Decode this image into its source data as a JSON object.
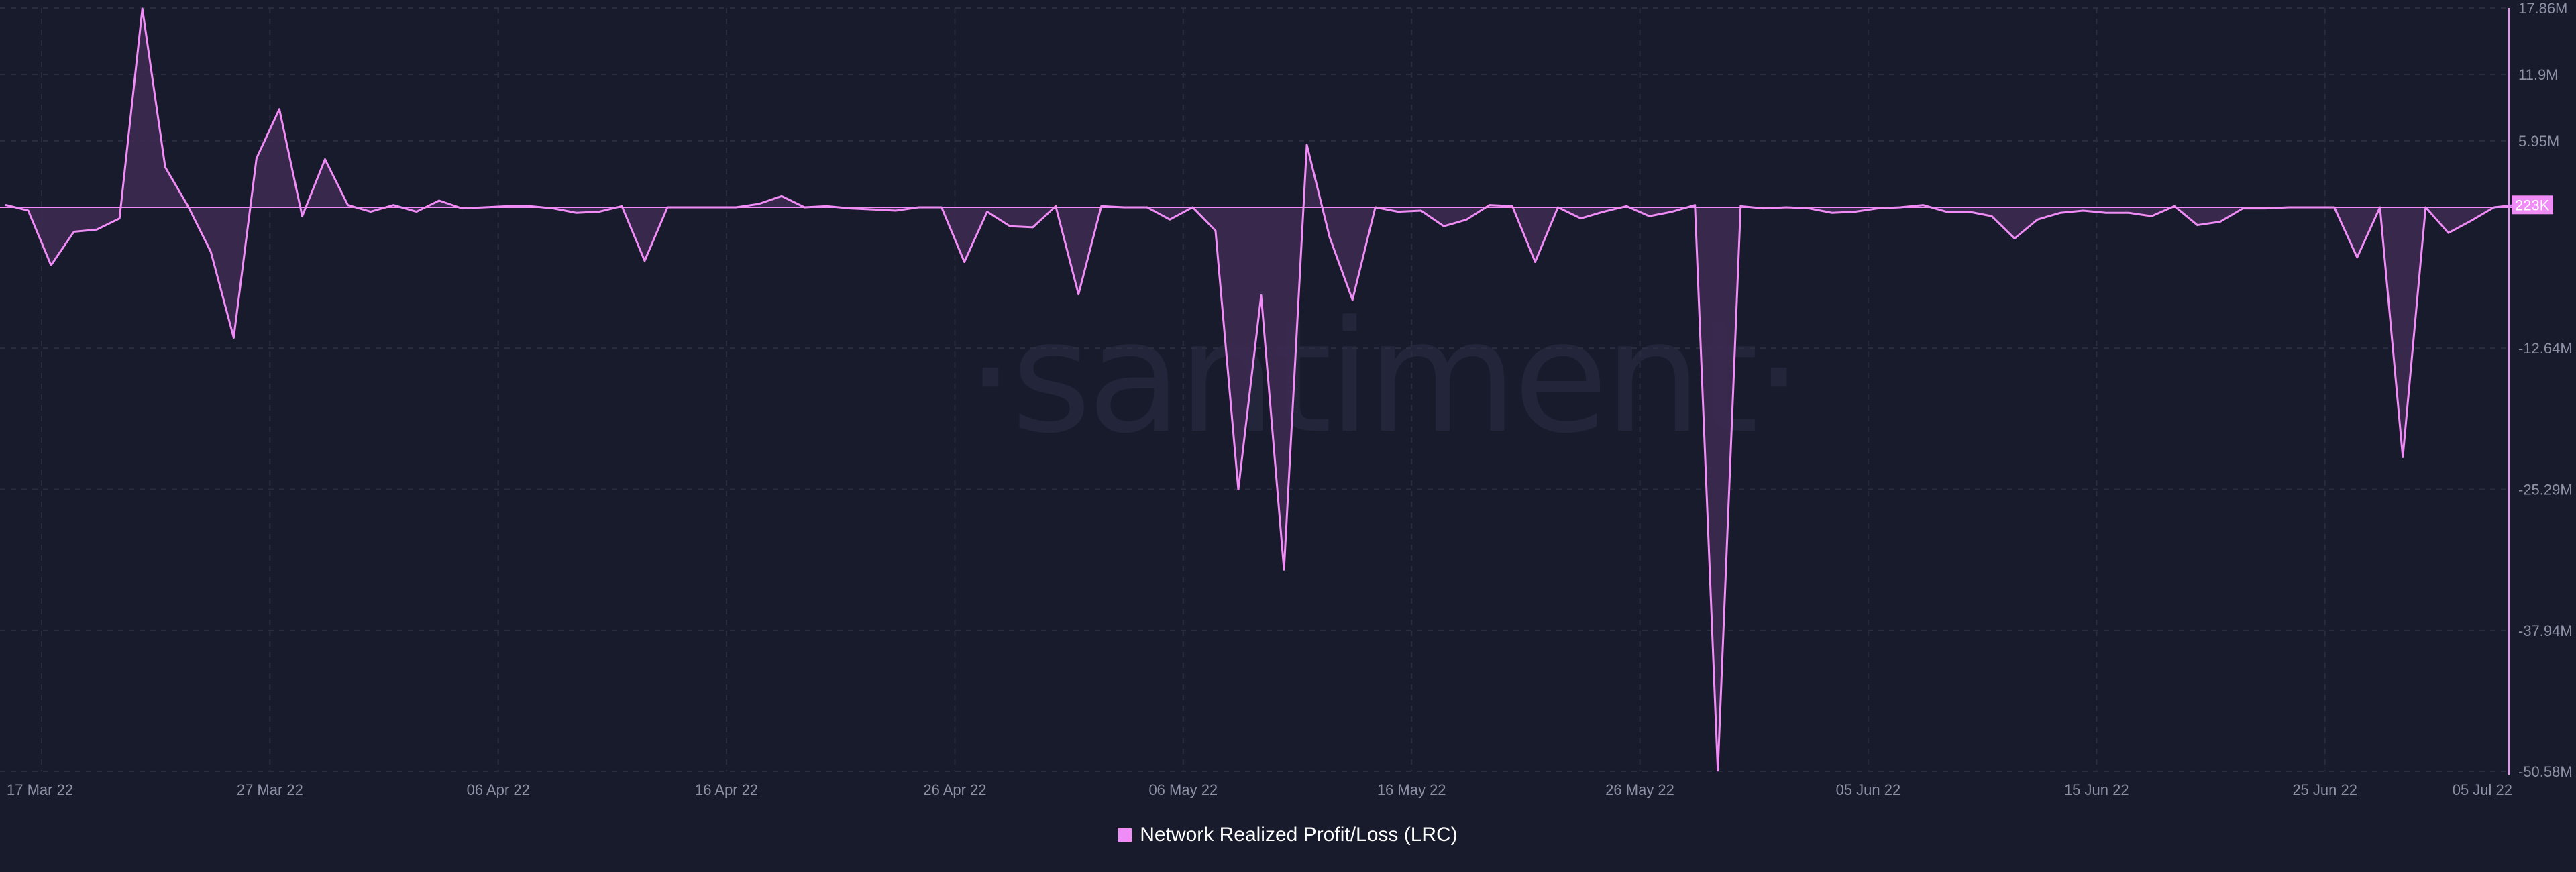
{
  "watermark": "·santiment·",
  "colors": {
    "background": "#181b2b",
    "line": "#f08cf5",
    "area": "#3e2a52",
    "grid": "#2a2d40",
    "axis_text": "#8d91a6",
    "last_value_bg": "#f08cf5"
  },
  "chart_data": {
    "type": "area",
    "title": "",
    "xlabel": "",
    "ylabel": "",
    "legend": {
      "position": "bottom-center",
      "entries": [
        "Network Realized Profit/Loss (LRC)"
      ]
    },
    "grid": true,
    "ylim": [
      -50.58,
      17.86
    ],
    "y_unit": "M",
    "y_ticks": [
      17.86,
      11.9,
      5.95,
      -12.64,
      -25.29,
      -37.94,
      -50.58
    ],
    "y_tick_labels": [
      "17.86M",
      "11.9M",
      "5.95M",
      "-12.64M",
      "-25.29M",
      "-37.94M",
      "-50.58M"
    ],
    "x_ticks": [
      "2022-03-17",
      "2022-03-27",
      "2022-04-06",
      "2022-04-16",
      "2022-04-26",
      "2022-05-06",
      "2022-05-16",
      "2022-05-26",
      "2022-06-05",
      "2022-06-15",
      "2022-06-25",
      "2022-07-05"
    ],
    "x_tick_labels": [
      "17 Mar 22",
      "27 Mar 22",
      "06 Apr 22",
      "16 Apr 22",
      "26 Apr 22",
      "06 May 22",
      "16 May 22",
      "26 May 22",
      "05 Jun 22",
      "15 Jun 22",
      "25 Jun 22",
      "05 Jul 22"
    ],
    "last_value_label": "223K",
    "series": [
      {
        "name": "Network Realized Profit/Loss (LRC)",
        "x": [
          "2022-03-17",
          "2022-03-18",
          "2022-03-19",
          "2022-03-20",
          "2022-03-21",
          "2022-03-22",
          "2022-03-23",
          "2022-03-24",
          "2022-03-25",
          "2022-03-26",
          "2022-03-27",
          "2022-03-28",
          "2022-03-29",
          "2022-03-30",
          "2022-03-31",
          "2022-04-01",
          "2022-04-02",
          "2022-04-03",
          "2022-04-04",
          "2022-04-05",
          "2022-04-06",
          "2022-04-07",
          "2022-04-08",
          "2022-04-09",
          "2022-04-10",
          "2022-04-11",
          "2022-04-12",
          "2022-04-13",
          "2022-04-14",
          "2022-04-15",
          "2022-04-16",
          "2022-04-17",
          "2022-04-18",
          "2022-04-19",
          "2022-04-20",
          "2022-04-21",
          "2022-04-22",
          "2022-04-23",
          "2022-04-24",
          "2022-04-25",
          "2022-04-26",
          "2022-04-27",
          "2022-04-28",
          "2022-04-29",
          "2022-04-30",
          "2022-05-01",
          "2022-05-02",
          "2022-05-03",
          "2022-05-04",
          "2022-05-05",
          "2022-05-06",
          "2022-05-07",
          "2022-05-08",
          "2022-05-09",
          "2022-05-10",
          "2022-05-11",
          "2022-05-12",
          "2022-05-13",
          "2022-05-14",
          "2022-05-15",
          "2022-05-16",
          "2022-05-17",
          "2022-05-18",
          "2022-05-19",
          "2022-05-20",
          "2022-05-21",
          "2022-05-22",
          "2022-05-23",
          "2022-05-24",
          "2022-05-25",
          "2022-05-26",
          "2022-05-27",
          "2022-05-28",
          "2022-05-29",
          "2022-05-30",
          "2022-05-31",
          "2022-06-01",
          "2022-06-02",
          "2022-06-03",
          "2022-06-04",
          "2022-06-05",
          "2022-06-06",
          "2022-06-07",
          "2022-06-08",
          "2022-06-09",
          "2022-06-10",
          "2022-06-11",
          "2022-06-12",
          "2022-06-13",
          "2022-06-14",
          "2022-06-15",
          "2022-06-16",
          "2022-06-17",
          "2022-06-18",
          "2022-06-19",
          "2022-06-20",
          "2022-06-21",
          "2022-06-22",
          "2022-06-23",
          "2022-06-24",
          "2022-06-25",
          "2022-06-26",
          "2022-06-27",
          "2022-06-28",
          "2022-06-29",
          "2022-06-30",
          "2022-07-01",
          "2022-07-02",
          "2022-07-03",
          "2022-07-04",
          "2022-07-05"
        ],
        "values": [
          0.22,
          -0.3,
          -5.2,
          -2.2,
          -2.0,
          -1.0,
          17.8,
          3.6,
          0.1,
          -4.0,
          -11.7,
          4.4,
          8.8,
          -0.8,
          4.3,
          0.2,
          -0.4,
          0.2,
          -0.4,
          0.6,
          -0.1,
          0.0,
          0.1,
          0.1,
          -0.1,
          -0.5,
          -0.4,
          0.1,
          -4.8,
          0.0,
          0.0,
          0.0,
          0.0,
          0.3,
          1.0,
          0.0,
          0.1,
          -0.1,
          -0.2,
          -0.3,
          0.0,
          0.0,
          -4.9,
          -0.4,
          -1.7,
          -1.8,
          0.1,
          -7.8,
          0.1,
          0.0,
          0.0,
          -1.1,
          0.0,
          -2.1,
          -25.3,
          -7.9,
          -32.5,
          5.6,
          -2.7,
          -8.3,
          0.0,
          -0.4,
          -0.3,
          -1.7,
          -1.1,
          0.2,
          0.1,
          -4.9,
          0.0,
          -1.0,
          -0.4,
          0.1,
          -0.8,
          -0.4,
          0.2,
          -50.5,
          0.1,
          -0.1,
          0.0,
          -0.1,
          -0.5,
          -0.4,
          -0.1,
          0.0,
          0.2,
          -0.4,
          -0.4,
          -0.8,
          -2.8,
          -1.1,
          -0.5,
          -0.3,
          -0.5,
          -0.5,
          -0.8,
          0.1,
          -1.6,
          -1.3,
          -0.1,
          -0.1,
          0.0,
          0.0,
          0.0,
          -4.5,
          0.0,
          -22.4,
          0.0,
          -2.3,
          -1.2,
          0.0,
          0.22
        ]
      }
    ]
  }
}
